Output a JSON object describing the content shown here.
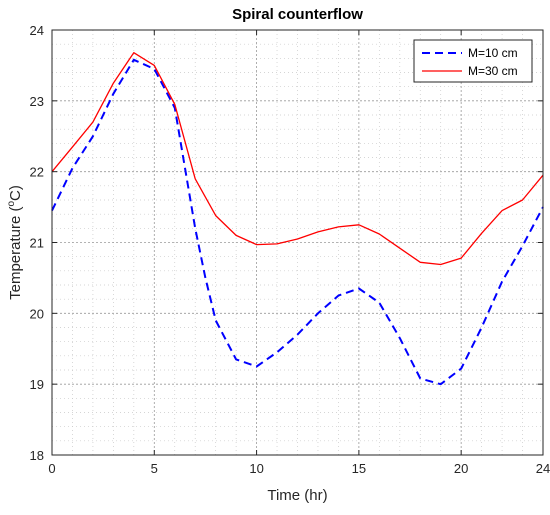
{
  "chart_data": {
    "type": "line",
    "title": "Spiral counterflow",
    "xlabel": "Time (hr)",
    "ylabel_main": "Temperature (",
    "ylabel_unit": "C)",
    "ylabel_degree": "o",
    "xlim": [
      0,
      24
    ],
    "ylim": [
      18,
      24
    ],
    "xticks": [
      0,
      5,
      10,
      15,
      20,
      24
    ],
    "yticks": [
      18,
      19,
      20,
      21,
      22,
      23,
      24
    ],
    "grid": "on",
    "minor_grid": "on",
    "legend_position": "top-right",
    "series": [
      {
        "name": "M=10 cm",
        "color": "#0000ff",
        "style": "dashed",
        "x": [
          0,
          1,
          2,
          3,
          4,
          5,
          6,
          7,
          7.5,
          8,
          9,
          10,
          11,
          12,
          13,
          14,
          15,
          16,
          17,
          18,
          19,
          20,
          21,
          22,
          23,
          24
        ],
        "y": [
          21.45,
          22.05,
          22.5,
          23.1,
          23.58,
          23.45,
          22.9,
          21.2,
          20.5,
          19.9,
          19.35,
          19.25,
          19.45,
          19.7,
          20.0,
          20.25,
          20.35,
          20.15,
          19.65,
          19.08,
          19.0,
          19.22,
          19.8,
          20.45,
          20.95,
          21.5
        ]
      },
      {
        "name": "M=30 cm",
        "color": "#ff0000",
        "style": "solid",
        "x": [
          0,
          1,
          2,
          3,
          4,
          5,
          6,
          7,
          8,
          9,
          10,
          11,
          12,
          13,
          14,
          15,
          16,
          17,
          18,
          19,
          20,
          21,
          22,
          23,
          24
        ],
        "y": [
          22.0,
          22.35,
          22.7,
          23.25,
          23.68,
          23.5,
          22.95,
          21.9,
          21.38,
          21.1,
          20.97,
          20.98,
          21.05,
          21.15,
          21.22,
          21.25,
          21.12,
          20.92,
          20.72,
          20.69,
          20.78,
          21.13,
          21.45,
          21.6,
          21.95
        ]
      }
    ]
  }
}
